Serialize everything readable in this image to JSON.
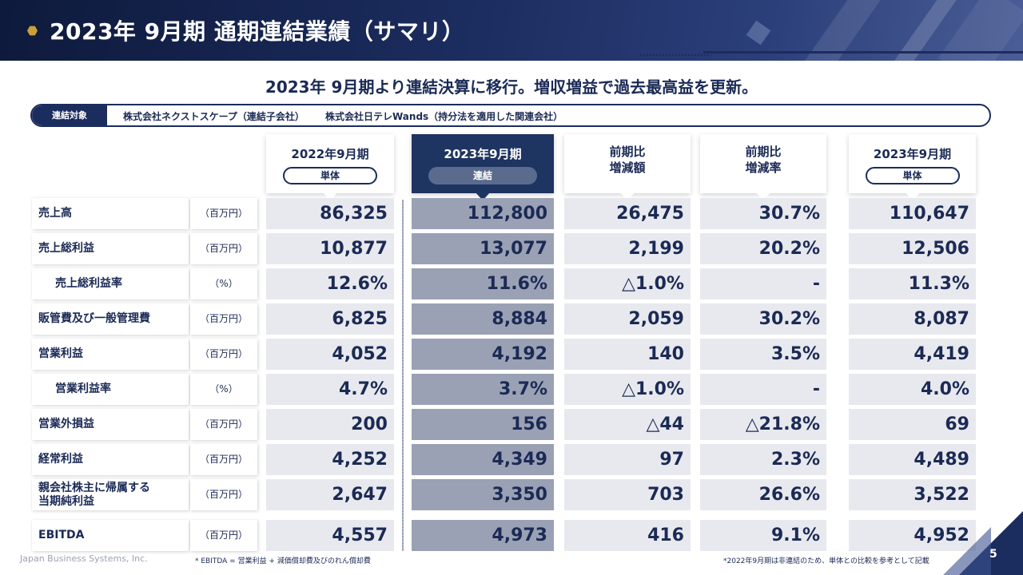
{
  "header": {
    "title": "2023年 9月期 通期連結業績（サマリ）"
  },
  "subtitle": "2023年 9月期より連結決算に移行。増収増益で過去最高益を更新。",
  "scope": {
    "tag": "連結対象",
    "company1": "株式会社ネクストスケープ（連結子会社）",
    "company2": "株式会社日テレWands（持分法を適用した関連会社）"
  },
  "columns": [
    {
      "title": "2022年9月期",
      "pill": "単体"
    },
    {
      "title": "2023年9月期",
      "pill": "連結"
    },
    {
      "title": "前期比\n増減額"
    },
    {
      "title": "前期比\n増減率"
    },
    {
      "title": "2023年9月期",
      "pill": "単体"
    }
  ],
  "rows": [
    {
      "label": "売上高",
      "unit": "（百万円）",
      "values": [
        "86,325",
        "112,800",
        "26,475",
        "30.7%",
        "110,647"
      ]
    },
    {
      "label": "売上総利益",
      "unit": "（百万円）",
      "values": [
        "10,877",
        "13,077",
        "2,199",
        "20.2%",
        "12,506"
      ]
    },
    {
      "label": "売上総利益率",
      "unit": "（%）",
      "values": [
        "12.6%",
        "11.6%",
        "△1.0%",
        "-",
        "11.3%"
      ]
    },
    {
      "label": "販管費及び一般管理費",
      "unit": "（百万円）",
      "values": [
        "6,825",
        "8,884",
        "2,059",
        "30.2%",
        "8,087"
      ]
    },
    {
      "label": "営業利益",
      "unit": "（百万円）",
      "values": [
        "4,052",
        "4,192",
        "140",
        "3.5%",
        "4,419"
      ]
    },
    {
      "label": "営業利益率",
      "unit": "（%）",
      "values": [
        "4.7%",
        "3.7%",
        "△1.0%",
        "-",
        "4.0%"
      ]
    },
    {
      "label": "営業外損益",
      "unit": "（百万円）",
      "values": [
        "200",
        "156",
        "△44",
        "△21.8%",
        "69"
      ]
    },
    {
      "label": "経常利益",
      "unit": "（百万円）",
      "values": [
        "4,252",
        "4,349",
        "97",
        "2.3%",
        "4,489"
      ]
    },
    {
      "label": "親会社株主に帰属する\n当期純利益",
      "unit": "（百万円）",
      "values": [
        "2,647",
        "3,350",
        "703",
        "26.6%",
        "3,522"
      ]
    },
    {
      "label": "EBITDA",
      "unit": "（百万円）",
      "values": [
        "4,557",
        "4,973",
        "416",
        "9.1%",
        "4,952"
      ]
    }
  ],
  "footer": {
    "company": "Japan Business Systems, Inc.",
    "note_ebitda": "* EBITDA = 営業利益 + 減価償却費及びのれん償却費",
    "note_compare": "*2022年9月期は非連結のため、単体との比較を参考として記載",
    "page": "5"
  },
  "colors": {
    "navy": "#1b2c5e",
    "highlight": "#9aa1b4",
    "cell": "#e8e9ee"
  }
}
